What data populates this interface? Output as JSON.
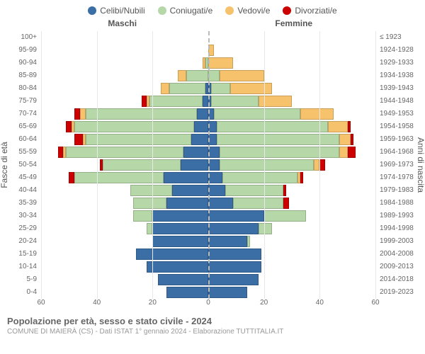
{
  "legend": {
    "items": [
      {
        "label": "Celibi/Nubili",
        "color": "#3a6ea5"
      },
      {
        "label": "Coniugati/e",
        "color": "#b6d7a8"
      },
      {
        "label": "Vedovi/e",
        "color": "#f6c26b"
      },
      {
        "label": "Divorziati/e",
        "color": "#cc0000"
      }
    ]
  },
  "chart": {
    "type": "population-pyramid",
    "xlim": 60,
    "x_ticks": [
      60,
      40,
      20,
      0,
      20,
      40,
      60
    ],
    "header_male": "Maschi",
    "header_female": "Femmine",
    "y_label_left": "Fasce di età",
    "y_label_right": "Anni di nascita",
    "bg": "#ffffff",
    "grid_color": "#e8e8e8",
    "center_color": "#bbbbbb",
    "colors": {
      "celibi": "#3a6ea5",
      "coniugati": "#b6d7a8",
      "vedovi": "#f6c26b",
      "divorziati": "#cc0000"
    },
    "rows": [
      {
        "age": "100+",
        "birth": "≤ 1923",
        "m": {
          "c": 0,
          "co": 0,
          "v": 0,
          "d": 0
        },
        "f": {
          "c": 0,
          "co": 0,
          "v": 0,
          "d": 0
        }
      },
      {
        "age": "95-99",
        "birth": "1924-1928",
        "m": {
          "c": 0,
          "co": 0,
          "v": 0,
          "d": 0
        },
        "f": {
          "c": 0,
          "co": 0,
          "v": 2,
          "d": 0
        }
      },
      {
        "age": "90-94",
        "birth": "1929-1933",
        "m": {
          "c": 0,
          "co": 1,
          "v": 1,
          "d": 0
        },
        "f": {
          "c": 0,
          "co": 0,
          "v": 9,
          "d": 0
        }
      },
      {
        "age": "85-89",
        "birth": "1934-1938",
        "m": {
          "c": 0,
          "co": 8,
          "v": 3,
          "d": 0
        },
        "f": {
          "c": 0,
          "co": 4,
          "v": 16,
          "d": 0
        }
      },
      {
        "age": "80-84",
        "birth": "1939-1943",
        "m": {
          "c": 1,
          "co": 13,
          "v": 3,
          "d": 0
        },
        "f": {
          "c": 1,
          "co": 7,
          "v": 15,
          "d": 0
        }
      },
      {
        "age": "75-79",
        "birth": "1944-1948",
        "m": {
          "c": 2,
          "co": 19,
          "v": 1,
          "d": 2
        },
        "f": {
          "c": 1,
          "co": 17,
          "v": 12,
          "d": 0
        }
      },
      {
        "age": "70-74",
        "birth": "1949-1953",
        "m": {
          "c": 4,
          "co": 40,
          "v": 2,
          "d": 2
        },
        "f": {
          "c": 2,
          "co": 31,
          "v": 12,
          "d": 0
        }
      },
      {
        "age": "65-69",
        "birth": "1954-1958",
        "m": {
          "c": 5,
          "co": 43,
          "v": 1,
          "d": 2
        },
        "f": {
          "c": 3,
          "co": 40,
          "v": 7,
          "d": 1
        }
      },
      {
        "age": "60-64",
        "birth": "1959-1963",
        "m": {
          "c": 6,
          "co": 38,
          "v": 1,
          "d": 3
        },
        "f": {
          "c": 3,
          "co": 44,
          "v": 4,
          "d": 1
        }
      },
      {
        "age": "55-59",
        "birth": "1964-1968",
        "m": {
          "c": 9,
          "co": 42,
          "v": 1,
          "d": 2
        },
        "f": {
          "c": 4,
          "co": 43,
          "v": 3,
          "d": 3
        }
      },
      {
        "age": "50-54",
        "birth": "1969-1973",
        "m": {
          "c": 10,
          "co": 28,
          "v": 0,
          "d": 1
        },
        "f": {
          "c": 4,
          "co": 34,
          "v": 2,
          "d": 2
        }
      },
      {
        "age": "45-49",
        "birth": "1974-1978",
        "m": {
          "c": 16,
          "co": 32,
          "v": 0,
          "d": 2
        },
        "f": {
          "c": 5,
          "co": 27,
          "v": 1,
          "d": 1
        }
      },
      {
        "age": "40-44",
        "birth": "1979-1983",
        "m": {
          "c": 13,
          "co": 15,
          "v": 0,
          "d": 0
        },
        "f": {
          "c": 6,
          "co": 21,
          "v": 0,
          "d": 1
        }
      },
      {
        "age": "35-39",
        "birth": "1984-1988",
        "m": {
          "c": 15,
          "co": 12,
          "v": 0,
          "d": 0
        },
        "f": {
          "c": 9,
          "co": 18,
          "v": 0,
          "d": 2
        }
      },
      {
        "age": "30-34",
        "birth": "1989-1993",
        "m": {
          "c": 20,
          "co": 7,
          "v": 0,
          "d": 0
        },
        "f": {
          "c": 20,
          "co": 15,
          "v": 0,
          "d": 0
        }
      },
      {
        "age": "25-29",
        "birth": "1994-1998",
        "m": {
          "c": 20,
          "co": 2,
          "v": 0,
          "d": 0
        },
        "f": {
          "c": 18,
          "co": 5,
          "v": 0,
          "d": 0
        }
      },
      {
        "age": "20-24",
        "birth": "1999-2003",
        "m": {
          "c": 20,
          "co": 0,
          "v": 0,
          "d": 0
        },
        "f": {
          "c": 14,
          "co": 1,
          "v": 0,
          "d": 0
        }
      },
      {
        "age": "15-19",
        "birth": "2004-2008",
        "m": {
          "c": 26,
          "co": 0,
          "v": 0,
          "d": 0
        },
        "f": {
          "c": 19,
          "co": 0,
          "v": 0,
          "d": 0
        }
      },
      {
        "age": "10-14",
        "birth": "2009-2013",
        "m": {
          "c": 22,
          "co": 0,
          "v": 0,
          "d": 0
        },
        "f": {
          "c": 19,
          "co": 0,
          "v": 0,
          "d": 0
        }
      },
      {
        "age": "5-9",
        "birth": "2014-2018",
        "m": {
          "c": 18,
          "co": 0,
          "v": 0,
          "d": 0
        },
        "f": {
          "c": 18,
          "co": 0,
          "v": 0,
          "d": 0
        }
      },
      {
        "age": "0-4",
        "birth": "2019-2023",
        "m": {
          "c": 15,
          "co": 0,
          "v": 0,
          "d": 0
        },
        "f": {
          "c": 14,
          "co": 0,
          "v": 0,
          "d": 0
        }
      }
    ]
  },
  "footer": {
    "title": "Popolazione per età, sesso e stato civile - 2024",
    "subtitle": "COMUNE DI MAIERÀ (CS) - Dati ISTAT 1° gennaio 2024 - Elaborazione TUTTITALIA.IT"
  }
}
